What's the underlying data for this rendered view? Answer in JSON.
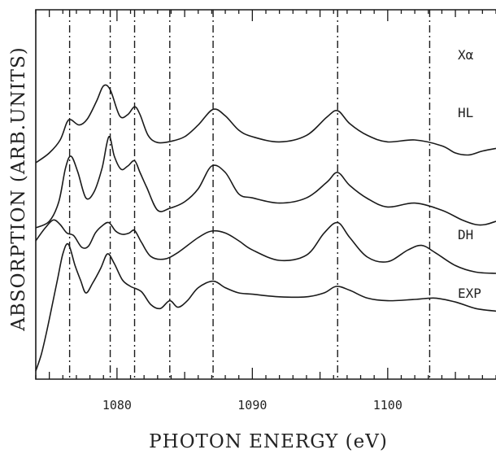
{
  "chart_data": {
    "type": "line",
    "xlabel": "PHOTON ENERGY (eV)",
    "ylabel": "ABSORPTION (ARB.UNITS)",
    "xlim": [
      1074,
      1108
    ],
    "xticks": [
      1080,
      1090,
      1100
    ],
    "vlines": [
      1076.5,
      1079.5,
      1081.3,
      1083.9,
      1087.1,
      1096.3,
      1103.1
    ],
    "series": [
      {
        "name": "Xα",
        "offset": 3.0,
        "x": [
          1074,
          1075,
          1075.8,
          1076.3,
          1076.6,
          1077.2,
          1077.8,
          1078.5,
          1079.0,
          1079.5,
          1080.2,
          1080.8,
          1081.3,
          1081.7,
          1082.3,
          1083.0,
          1084.0,
          1085.0,
          1086.0,
          1087.1,
          1088.0,
          1089.0,
          1090.0,
          1092.0,
          1094.0,
          1095.5,
          1096.3,
          1097.2,
          1098.5,
          1100.0,
          1102.0,
          1104.0,
          1105.0,
          1106.0,
          1107.0,
          1108.0
        ],
        "y": [
          0.0,
          0.15,
          0.35,
          0.62,
          0.66,
          0.58,
          0.67,
          0.95,
          1.18,
          1.12,
          0.72,
          0.74,
          0.86,
          0.74,
          0.42,
          0.31,
          0.33,
          0.4,
          0.58,
          0.82,
          0.72,
          0.5,
          0.4,
          0.32,
          0.42,
          0.7,
          0.8,
          0.6,
          0.42,
          0.32,
          0.35,
          0.26,
          0.15,
          0.12,
          0.18,
          0.22
        ]
      },
      {
        "name": "HL",
        "offset": 2.0,
        "x": [
          1074,
          1075,
          1075.7,
          1076.2,
          1076.6,
          1077.1,
          1077.7,
          1078.3,
          1078.9,
          1079.4,
          1079.8,
          1080.3,
          1080.8,
          1081.3,
          1081.7,
          1082.2,
          1083.0,
          1083.9,
          1085.0,
          1086.0,
          1087.0,
          1088.0,
          1089.0,
          1090.0,
          1092.0,
          1094.0,
          1095.5,
          1096.3,
          1097.2,
          1098.5,
          1100.0,
          1102.0,
          1104.0,
          1105.5,
          1106.5,
          1107.2,
          1108.0
        ],
        "y": [
          0.0,
          0.1,
          0.4,
          0.92,
          1.1,
          0.86,
          0.46,
          0.55,
          0.92,
          1.4,
          1.1,
          0.9,
          0.95,
          1.03,
          0.85,
          0.62,
          0.27,
          0.3,
          0.4,
          0.6,
          0.95,
          0.85,
          0.52,
          0.46,
          0.38,
          0.46,
          0.7,
          0.85,
          0.65,
          0.45,
          0.32,
          0.38,
          0.27,
          0.12,
          0.05,
          0.05,
          0.1
        ]
      },
      {
        "name": "DH",
        "offset": 1.0,
        "x": [
          1074,
          1074.7,
          1075.3,
          1075.8,
          1076.3,
          1076.8,
          1077.4,
          1077.9,
          1078.4,
          1078.9,
          1079.4,
          1079.9,
          1080.4,
          1080.9,
          1081.3,
          1081.8,
          1082.5,
          1083.5,
          1084.5,
          1086.0,
          1087.0,
          1088.0,
          1089.0,
          1090.0,
          1092.0,
          1094.0,
          1095.3,
          1096.3,
          1097.2,
          1098.5,
          1100.0,
          1101.5,
          1102.5,
          1103.5,
          1105.0,
          1106.5,
          1108.0
        ],
        "y": [
          0.8,
          1.0,
          1.12,
          1.05,
          0.92,
          0.88,
          0.7,
          0.72,
          0.92,
          1.03,
          1.08,
          0.95,
          0.9,
          0.92,
          0.96,
          0.78,
          0.56,
          0.52,
          0.62,
          0.85,
          0.95,
          0.92,
          0.8,
          0.66,
          0.5,
          0.58,
          0.92,
          1.08,
          0.85,
          0.55,
          0.48,
          0.66,
          0.73,
          0.62,
          0.42,
          0.32,
          0.3
        ]
      },
      {
        "name": "EXP",
        "offset": 0.0,
        "x": [
          1074,
          1074.4,
          1074.8,
          1075.2,
          1075.6,
          1076.0,
          1076.4,
          1076.9,
          1077.3,
          1077.7,
          1078.2,
          1078.8,
          1079.3,
          1079.8,
          1080.4,
          1081.0,
          1081.8,
          1082.5,
          1083.2,
          1083.9,
          1084.5,
          1085.2,
          1086.0,
          1087.1,
          1088.0,
          1089.0,
          1090.0,
          1092.0,
          1094.0,
          1095.3,
          1096.2,
          1097.2,
          1098.5,
          1100.0,
          1102.0,
          1103.5,
          1105.0,
          1106.5,
          1108.0
        ],
        "y": [
          -0.2,
          0.05,
          0.4,
          0.8,
          1.2,
          1.6,
          1.75,
          1.42,
          1.2,
          1.0,
          1.15,
          1.38,
          1.6,
          1.45,
          1.2,
          1.1,
          1.02,
          0.82,
          0.76,
          0.88,
          0.78,
          0.88,
          1.08,
          1.18,
          1.08,
          1.0,
          0.98,
          0.94,
          0.94,
          1.0,
          1.1,
          1.04,
          0.92,
          0.88,
          0.9,
          0.92,
          0.86,
          0.76,
          0.72
        ]
      }
    ]
  }
}
